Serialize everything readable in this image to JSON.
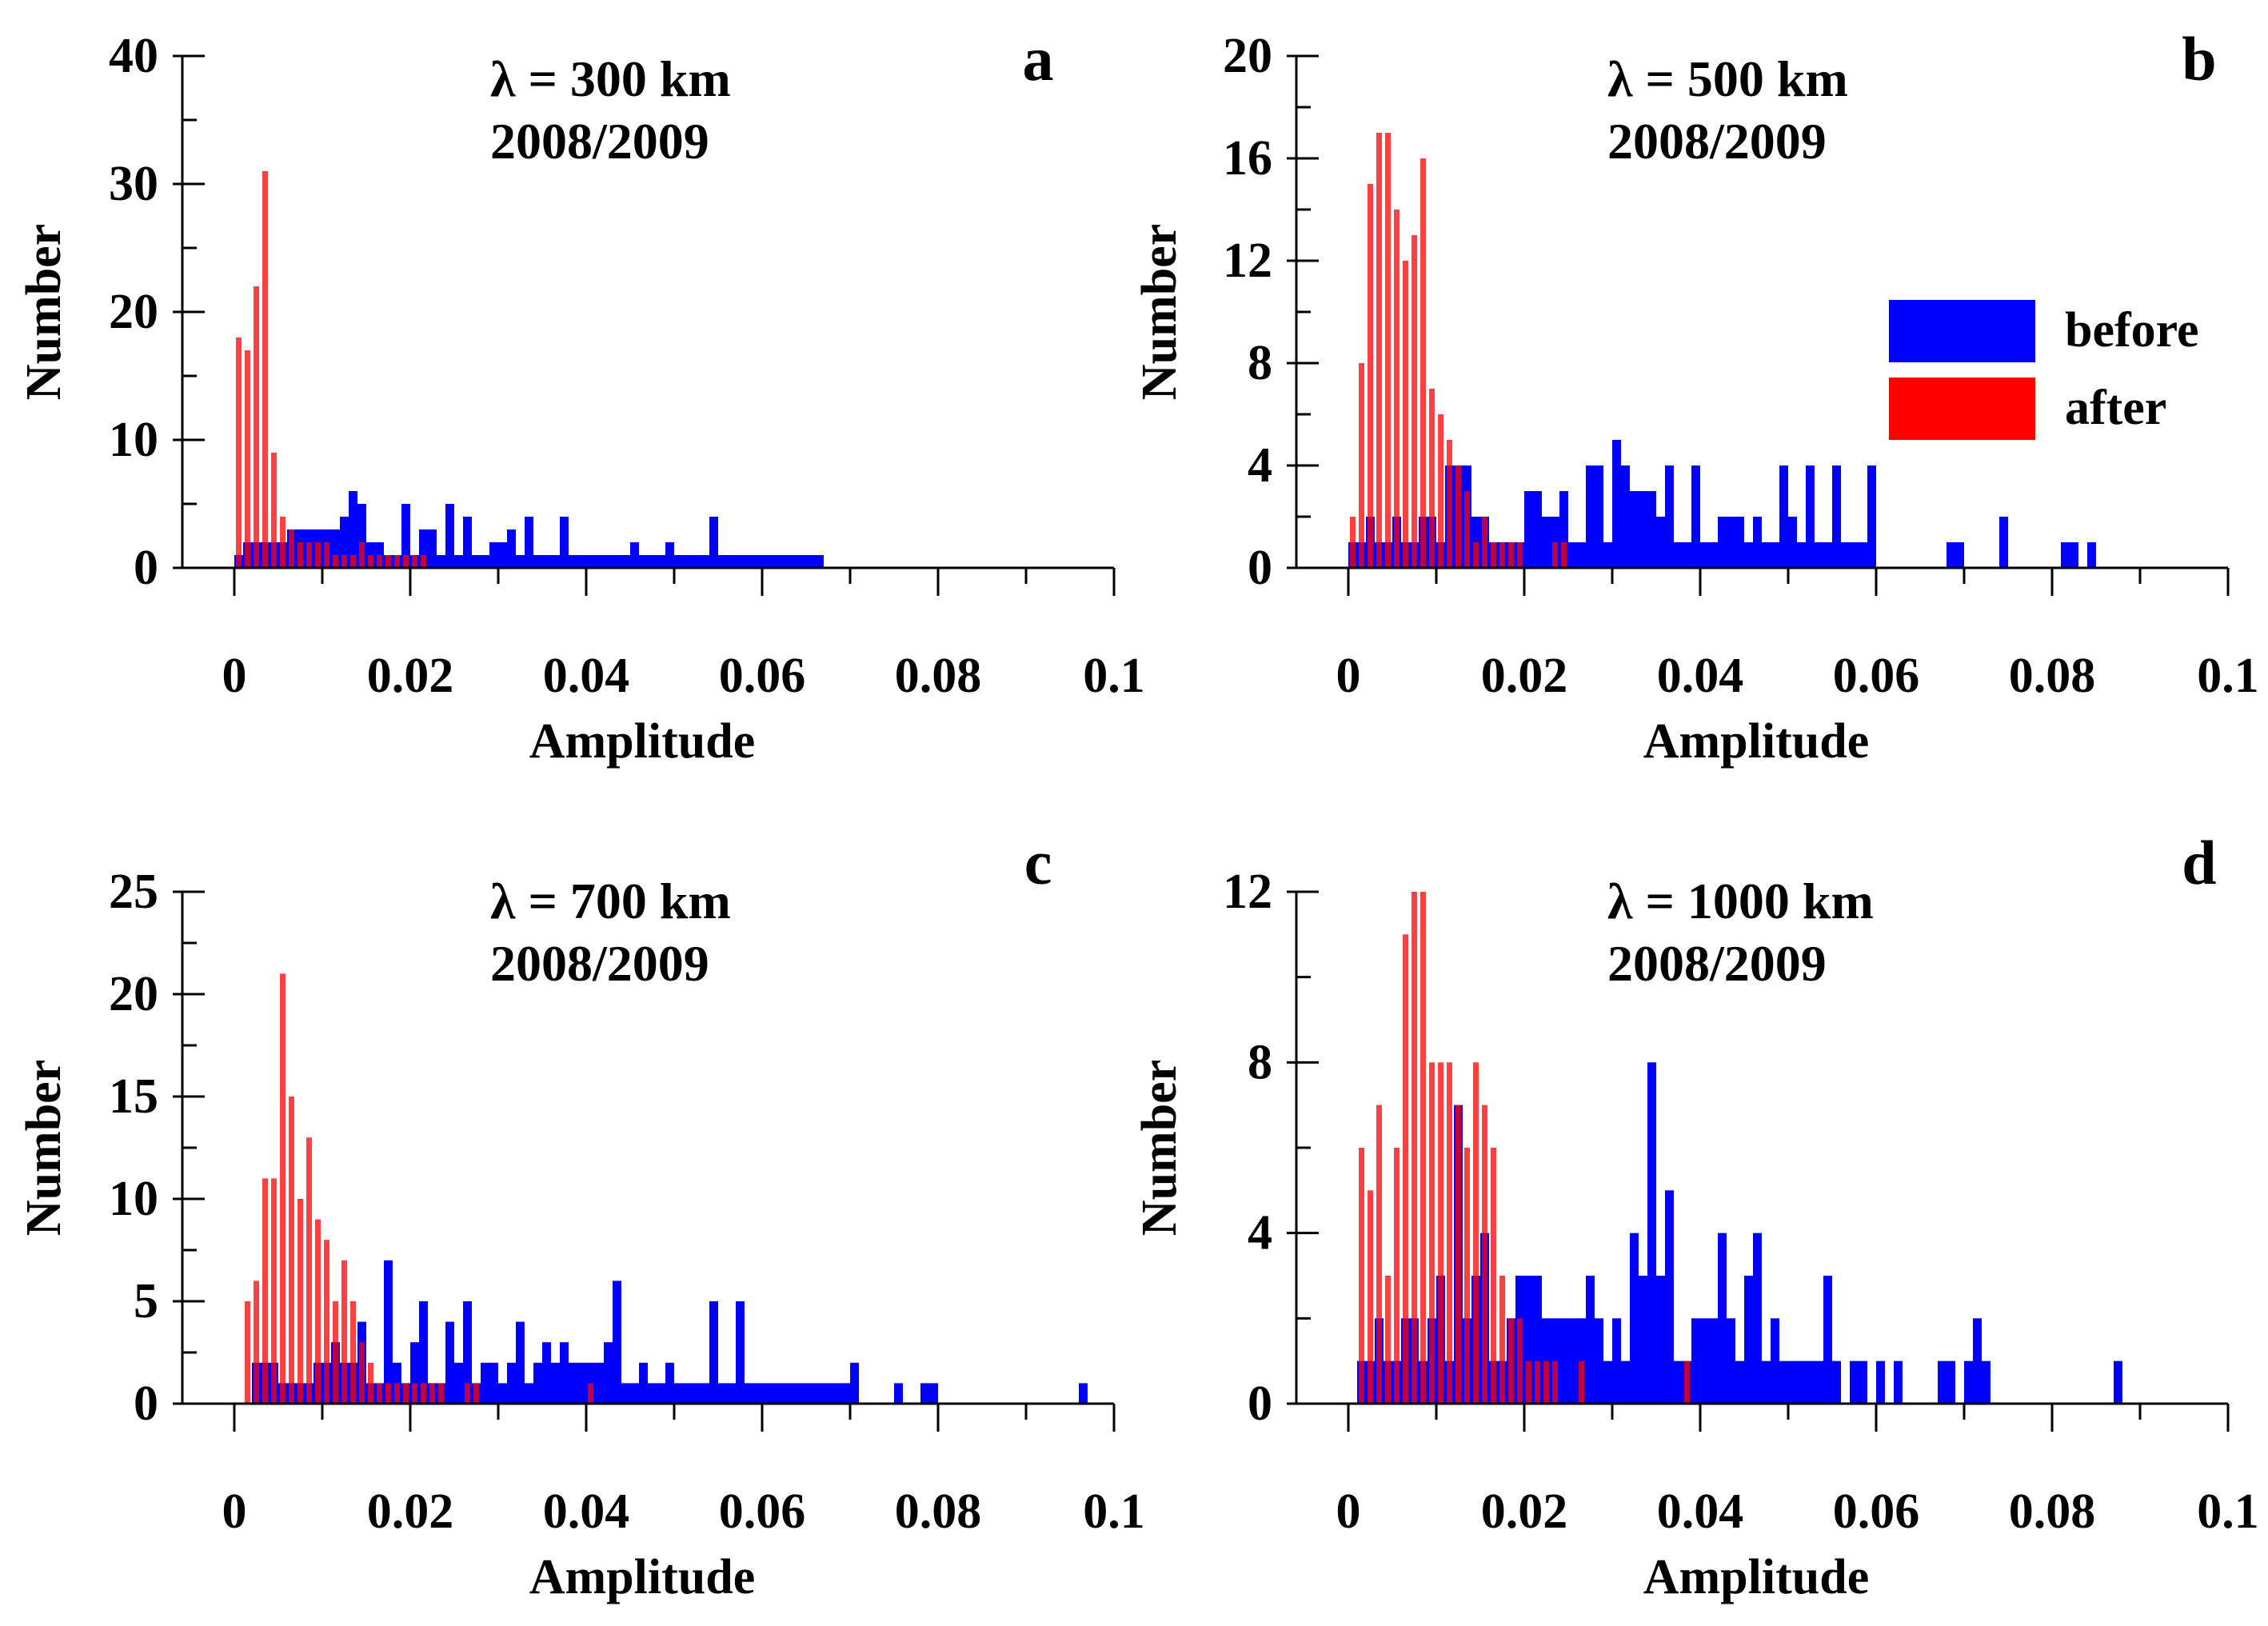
{
  "figure": {
    "legend": [
      {
        "label": "before",
        "color": "#0000ff"
      },
      {
        "label": "after",
        "color": "#ff0000"
      }
    ]
  },
  "chart_data": [
    {
      "panel": "a",
      "type": "bar",
      "title": "",
      "annotation": [
        "λ = 300 km",
        "2008/2009"
      ],
      "xlabel": "Amplitude",
      "ylabel": "Number",
      "xlim": [
        0,
        0.1
      ],
      "ylim": [
        0,
        40
      ],
      "xticks": [
        0,
        0.02,
        0.04,
        0.06,
        0.08,
        0.1
      ],
      "xtick_labels": [
        "0",
        "0.02",
        "0.04",
        "0.06",
        "0.08",
        "0.1"
      ],
      "yticks": [
        0,
        10,
        20,
        30,
        40
      ],
      "ytick_labels": [
        "0",
        "10",
        "20",
        "30",
        "40"
      ],
      "bin_width": 0.001,
      "series": [
        {
          "name": "before",
          "color": "#0000ff",
          "values": [
            1,
            2,
            2,
            2,
            2,
            2,
            3,
            3,
            3,
            3,
            3,
            3,
            4,
            6,
            5,
            2,
            2,
            1,
            1,
            5,
            1,
            3,
            3,
            1,
            5,
            1,
            4,
            1,
            1,
            2,
            2,
            3,
            1,
            4,
            1,
            1,
            1,
            4,
            1,
            1,
            1,
            1,
            1,
            1,
            1,
            2,
            1,
            1,
            1,
            2,
            1,
            1,
            1,
            1,
            4,
            1,
            1,
            1,
            1,
            1,
            1,
            1,
            1,
            1,
            1,
            1,
            1
          ]
        },
        {
          "name": "after",
          "color": "#ff0000",
          "values": [
            18,
            17,
            22,
            31,
            9,
            4,
            3,
            2,
            2,
            2,
            2,
            1,
            1,
            1,
            2,
            1,
            1,
            1,
            1,
            1,
            1,
            1
          ]
        }
      ]
    },
    {
      "panel": "b",
      "type": "bar",
      "title": "",
      "annotation": [
        "λ = 500 km",
        "2008/2009"
      ],
      "xlabel": "Amplitude",
      "ylabel": "Number",
      "xlim": [
        0,
        0.1
      ],
      "ylim": [
        0,
        20
      ],
      "xticks": [
        0,
        0.02,
        0.04,
        0.06,
        0.08,
        0.1
      ],
      "xtick_labels": [
        "0",
        "0.02",
        "0.04",
        "0.06",
        "0.08",
        "0.1"
      ],
      "yticks": [
        0,
        4,
        8,
        12,
        16,
        20
      ],
      "ytick_labels": [
        "0",
        "4",
        "8",
        "12",
        "16",
        "20"
      ],
      "bin_width": 0.001,
      "series": [
        {
          "name": "before",
          "color": "#0000ff",
          "values": [
            1,
            1,
            2,
            1,
            1,
            2,
            1,
            1,
            2,
            2,
            1,
            4,
            4,
            4,
            2,
            2,
            1,
            1,
            1,
            1,
            3,
            3,
            2,
            2,
            3,
            1,
            1,
            4,
            4,
            1,
            5,
            4,
            3,
            3,
            3,
            2,
            4,
            1,
            1,
            4,
            1,
            1,
            2,
            2,
            2,
            1,
            2,
            1,
            1,
            4,
            2,
            1,
            4,
            1,
            1,
            4,
            1,
            1,
            1,
            4,
            0,
            0,
            0,
            0,
            0,
            0,
            0,
            0,
            1,
            1,
            0,
            0,
            0,
            0,
            2,
            0,
            0,
            0,
            0,
            0,
            0,
            1,
            1,
            0,
            1
          ]
        },
        {
          "name": "after",
          "color": "#ff0000",
          "values": [
            2,
            8,
            15,
            17,
            17,
            14,
            12,
            13,
            16,
            7,
            6,
            5,
            4,
            3,
            1,
            2,
            1,
            1,
            1,
            1,
            0,
            0,
            0,
            1,
            1
          ]
        }
      ]
    },
    {
      "panel": "c",
      "type": "bar",
      "title": "",
      "annotation": [
        "λ = 700 km",
        "2008/2009"
      ],
      "xlabel": "Amplitude",
      "ylabel": "Number",
      "xlim": [
        0,
        0.1
      ],
      "ylim": [
        0,
        25
      ],
      "xticks": [
        0,
        0.02,
        0.04,
        0.06,
        0.08,
        0.1
      ],
      "xtick_labels": [
        "0",
        "0.02",
        "0.04",
        "0.06",
        "0.08",
        "0.1"
      ],
      "yticks": [
        0,
        5,
        10,
        15,
        20,
        25
      ],
      "ytick_labels": [
        "0",
        "5",
        "10",
        "15",
        "20",
        "25"
      ],
      "bin_width": 0.001,
      "series": [
        {
          "name": "before",
          "color": "#0000ff",
          "values": [
            0,
            0,
            2,
            2,
            2,
            1,
            1,
            1,
            1,
            2,
            2,
            3,
            2,
            2,
            4,
            1,
            1,
            7,
            2,
            1,
            3,
            5,
            1,
            1,
            4,
            2,
            5,
            1,
            2,
            2,
            1,
            2,
            4,
            1,
            2,
            3,
            2,
            3,
            2,
            2,
            2,
            2,
            3,
            6,
            1,
            1,
            2,
            1,
            1,
            2,
            1,
            1,
            1,
            1,
            5,
            1,
            1,
            5,
            1,
            1,
            1,
            1,
            1,
            1,
            1,
            1,
            1,
            1,
            1,
            1,
            2,
            0,
            0,
            0,
            0,
            1,
            0,
            0,
            1,
            1,
            0,
            0,
            0,
            0,
            0,
            0,
            0,
            0,
            0,
            0,
            0,
            0,
            0,
            0,
            0,
            0,
            1
          ]
        },
        {
          "name": "after",
          "color": "#ff0000",
          "values": [
            0,
            5,
            6,
            11,
            11,
            21,
            15,
            10,
            13,
            9,
            8,
            5,
            7,
            5,
            3,
            2,
            1,
            1,
            1,
            1,
            1,
            1,
            1,
            1,
            0,
            0,
            1,
            1,
            0,
            0,
            0,
            0,
            0,
            0,
            0,
            0,
            0,
            0,
            0,
            0,
            1
          ]
        }
      ]
    },
    {
      "panel": "d",
      "type": "bar",
      "title": "",
      "annotation": [
        "λ = 1000 km",
        "2008/2009"
      ],
      "xlabel": "Amplitude",
      "ylabel": "Number",
      "xlim": [
        0,
        0.1
      ],
      "ylim": [
        0,
        12
      ],
      "xticks": [
        0,
        0.02,
        0.04,
        0.06,
        0.08,
        0.1
      ],
      "xtick_labels": [
        "0",
        "0.02",
        "0.04",
        "0.06",
        "0.08",
        "0.1"
      ],
      "yticks": [
        0,
        4,
        8,
        12
      ],
      "ytick_labels": [
        "0",
        "4",
        "8",
        "12"
      ],
      "bin_width": 0.001,
      "series": [
        {
          "name": "before",
          "color": "#0000ff",
          "values": [
            0,
            1,
            1,
            2,
            1,
            1,
            2,
            2,
            1,
            2,
            3,
            1,
            7,
            2,
            3,
            4,
            1,
            1,
            2,
            3,
            3,
            3,
            2,
            2,
            2,
            2,
            2,
            3,
            2,
            1,
            2,
            1,
            4,
            3,
            8,
            3,
            5,
            1,
            1,
            2,
            2,
            2,
            4,
            2,
            1,
            3,
            4,
            1,
            2,
            1,
            1,
            1,
            1,
            1,
            3,
            1,
            0,
            1,
            1,
            0,
            1,
            0,
            1,
            0,
            0,
            0,
            0,
            1,
            1,
            0,
            1,
            2,
            1,
            0,
            0,
            0,
            0,
            0,
            0,
            0,
            0,
            0,
            0,
            0,
            0,
            0,
            0,
            1
          ]
        },
        {
          "name": "after",
          "color": "#ff0000",
          "values": [
            0,
            6,
            5,
            7,
            3,
            6,
            11,
            12,
            12,
            8,
            8,
            8,
            7,
            6,
            8,
            7,
            6,
            3,
            2,
            2,
            1,
            1,
            1,
            1,
            0,
            0,
            1,
            0,
            0,
            0,
            0,
            0,
            0,
            0,
            0,
            0,
            0,
            0,
            1
          ]
        }
      ]
    }
  ]
}
